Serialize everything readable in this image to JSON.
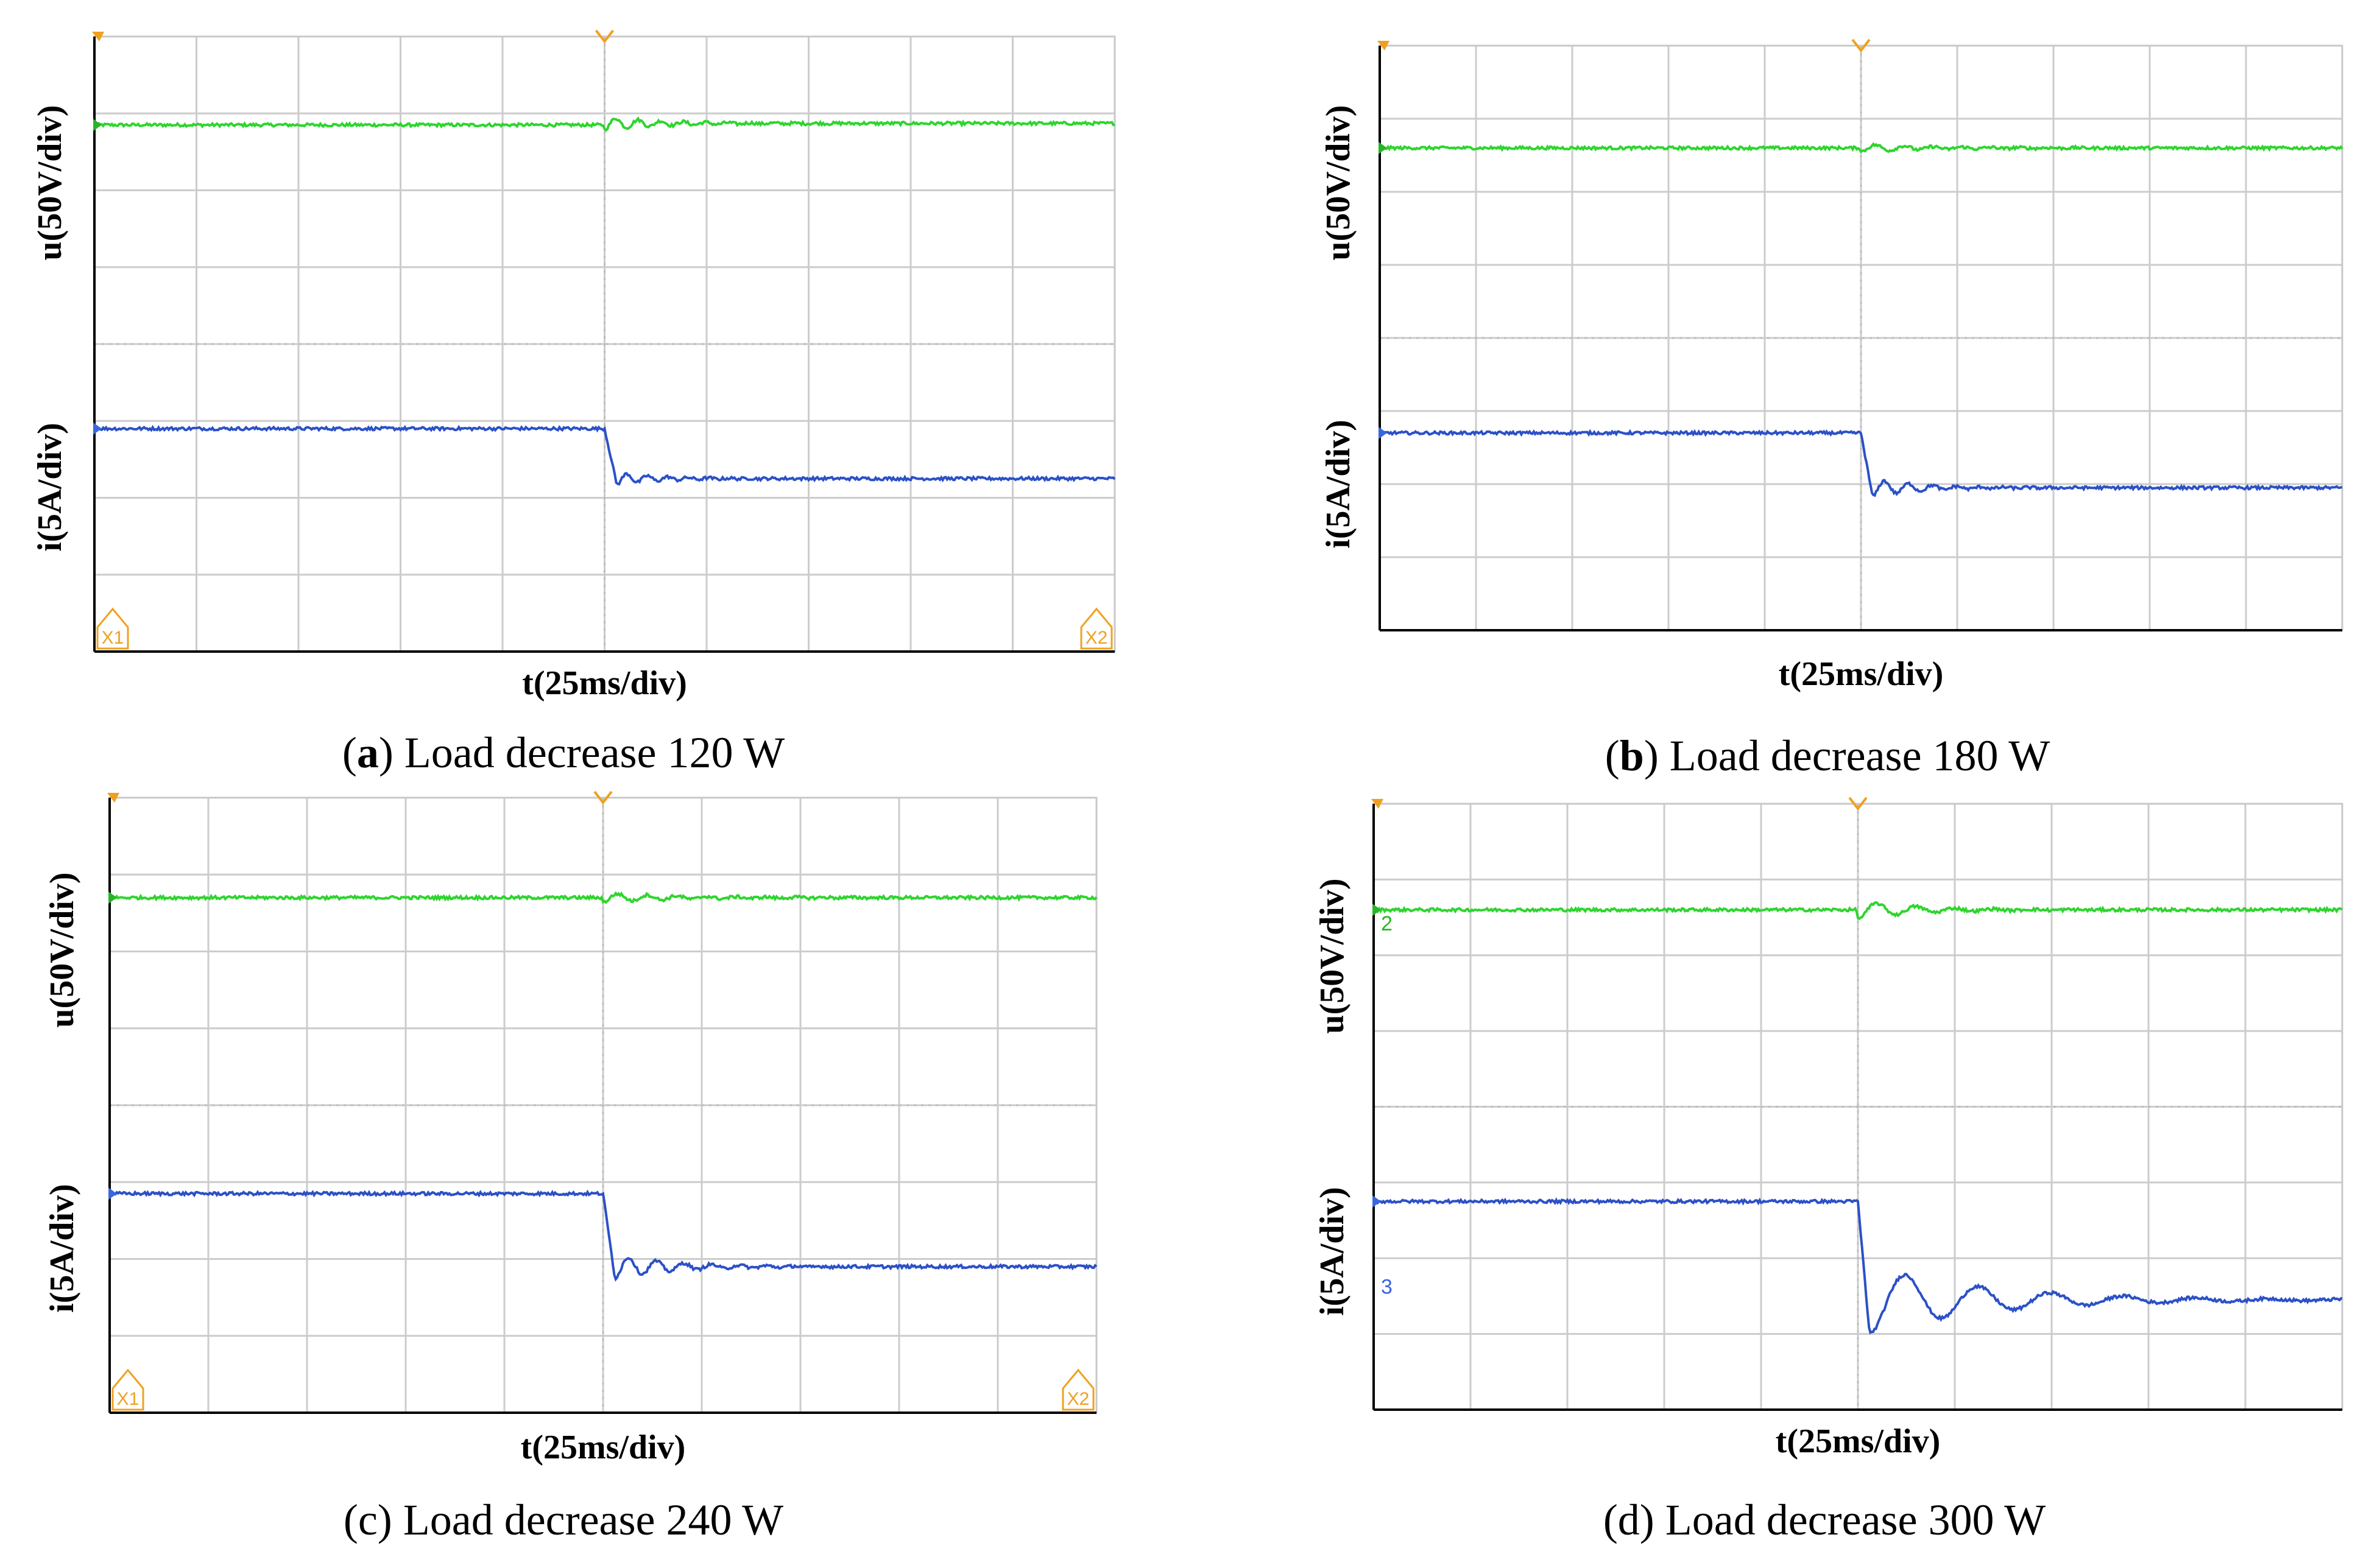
{
  "figure": {
    "colors": {
      "voltage": "#2ed52e",
      "current": "#2b50c8",
      "grid": "#cccccc",
      "frame": "#000000",
      "trigger": "#f0a020",
      "voltage_channel": "#27b527",
      "current_channel": "#3a66e0"
    }
  },
  "chart_data": [
    {
      "type": "line",
      "panel": "a",
      "caption_prefix": "(",
      "caption_letter": "a",
      "caption_rest": ") Load decrease 120 W",
      "caption_letter_bold": true,
      "xlabel": "t(25ms/div)",
      "ylabel_voltage": "u(50V/div)",
      "ylabel_current": "i(5A/div)",
      "xlim_div": [
        0,
        10
      ],
      "ylim_div": [
        0,
        8
      ],
      "grid": true,
      "step_time_div": 5,
      "show_x_markers": true,
      "marker_labels": [
        "X1",
        "X2"
      ],
      "channel_labels": [],
      "series": [
        {
          "name": "u",
          "level_div": 6.85,
          "level_after_div": 6.87,
          "step_div": 0.0,
          "oscillation_div": 0.08,
          "decay_div": 0.6,
          "period_div": 0.22,
          "noise_div": 0.02
        },
        {
          "name": "i",
          "level_div": 2.9,
          "level_after_div": 2.25,
          "step_div": 0.65,
          "oscillation_div": 0.08,
          "decay_div": 0.4,
          "period_div": 0.2,
          "noise_div": 0.02
        }
      ]
    },
    {
      "type": "line",
      "panel": "b",
      "caption_prefix": "(",
      "caption_letter": "b",
      "caption_rest": ") Load decrease 180 W",
      "caption_letter_bold": true,
      "xlabel": "t(25ms/div)",
      "ylabel_voltage": "u(50V/div)",
      "ylabel_current": "i(5A/div)",
      "xlim_div": [
        0,
        10
      ],
      "ylim_div": [
        0,
        8
      ],
      "grid": true,
      "step_time_div": 5,
      "show_x_markers": false,
      "marker_labels": [],
      "channel_labels": [],
      "series": [
        {
          "name": "u",
          "level_div": 6.6,
          "level_after_div": 6.6,
          "step_div": 0.0,
          "oscillation_div": 0.05,
          "decay_div": 0.8,
          "period_div": 0.3,
          "noise_div": 0.02
        },
        {
          "name": "i",
          "level_div": 2.7,
          "level_after_div": 1.95,
          "step_div": 0.75,
          "oscillation_div": 0.12,
          "decay_div": 0.5,
          "period_div": 0.25,
          "noise_div": 0.02
        }
      ]
    },
    {
      "type": "line",
      "panel": "c",
      "caption_prefix": "",
      "caption_letter": "",
      "caption_rest": "(c) Load decrease 240 W",
      "caption_letter_bold": false,
      "xlabel": "t(25ms/div)",
      "ylabel_voltage": "u(50V/div)",
      "ylabel_current": "i(5A/div)",
      "xlim_div": [
        0,
        10
      ],
      "ylim_div": [
        0,
        8
      ],
      "grid": true,
      "step_time_div": 5,
      "show_x_markers": true,
      "marker_labels": [
        "X1",
        "X2"
      ],
      "channel_labels": [],
      "series": [
        {
          "name": "u",
          "level_div": 6.7,
          "level_after_div": 6.7,
          "step_div": 0.0,
          "oscillation_div": 0.06,
          "decay_div": 0.8,
          "period_div": 0.3,
          "noise_div": 0.02
        },
        {
          "name": "i",
          "level_div": 2.85,
          "level_after_div": 1.9,
          "step_div": 0.95,
          "oscillation_div": 0.15,
          "decay_div": 0.6,
          "period_div": 0.28,
          "noise_div": 0.02
        }
      ]
    },
    {
      "type": "line",
      "panel": "d",
      "caption_prefix": "",
      "caption_letter": "",
      "caption_rest": "(d) Load decrease 300 W",
      "caption_letter_bold": false,
      "xlabel": "t(25ms/div)",
      "ylabel_voltage": "u(50V/div)",
      "ylabel_current": "i(5A/div)",
      "xlim_div": [
        0,
        10
      ],
      "ylim_div": [
        0,
        8
      ],
      "grid": true,
      "step_time_div": 5,
      "show_x_markers": false,
      "marker_labels": [],
      "channel_labels": [
        "2",
        "3"
      ],
      "series": [
        {
          "name": "u",
          "level_div": 6.6,
          "level_after_div": 6.6,
          "step_div": 0.0,
          "oscillation_div": 0.12,
          "decay_div": 0.6,
          "period_div": 0.4,
          "noise_div": 0.02
        },
        {
          "name": "i",
          "level_div": 2.75,
          "level_after_div": 1.45,
          "step_div": 1.3,
          "oscillation_div": 0.45,
          "decay_div": 1.2,
          "period_div": 0.75,
          "noise_div": 0.02
        }
      ]
    }
  ]
}
